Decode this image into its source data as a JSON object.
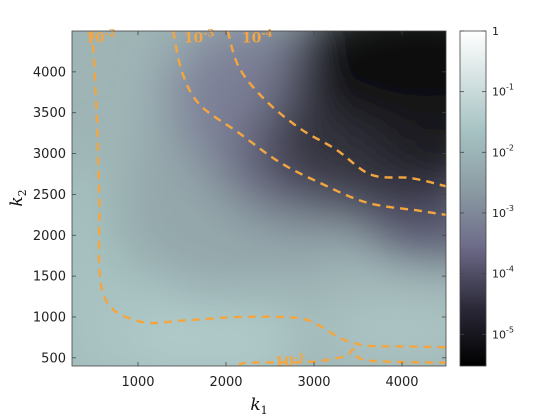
{
  "chart_data": {
    "type": "heatmap",
    "title": "",
    "xlabel": {
      "base": "k",
      "sub": "1"
    },
    "ylabel": {
      "base": "k",
      "sub": "2"
    },
    "xlim": [
      250,
      4500
    ],
    "ylim": [
      400,
      4500
    ],
    "xticks": [
      1000,
      2000,
      3000,
      4000
    ],
    "yticks": [
      500,
      1000,
      1500,
      2000,
      2500,
      3000,
      3500,
      4000
    ],
    "colorbar": {
      "scale": "log",
      "range": [
        3e-06,
        1
      ],
      "ticks": [
        {
          "value": 1,
          "label": "1"
        },
        {
          "value": 0.1,
          "label": "10",
          "exp": "-1"
        },
        {
          "value": 0.01,
          "label": "10",
          "exp": "-2"
        },
        {
          "value": 0.001,
          "label": "10",
          "exp": "-3"
        },
        {
          "value": 0.0001,
          "label": "10",
          "exp": "-4"
        },
        {
          "value": 1e-05,
          "label": "10",
          "exp": "-5"
        }
      ],
      "colormap": [
        "#000000",
        "#2a2837",
        "#6e6c8a",
        "#8a9aa2",
        "#a6c2c2",
        "#ffffff"
      ]
    },
    "contours": [
      {
        "level": 0.1,
        "label": "10",
        "exp": "-1",
        "points": [
          [
            2150,
            400
          ],
          [
            2250,
            440
          ],
          [
            2950,
            450
          ],
          [
            3350,
            520
          ],
          [
            3450,
            600
          ],
          [
            3600,
            470
          ],
          [
            4500,
            440
          ]
        ],
        "label_at": [
          2550,
          470
        ]
      },
      {
        "level": 0.01,
        "label": "10",
        "exp": "-2",
        "points": [
          [
            480,
            4500
          ],
          [
            530,
            3500
          ],
          [
            560,
            2500
          ],
          [
            600,
            1300
          ],
          [
            1000,
            950
          ],
          [
            1550,
            960
          ],
          [
            2150,
            1000
          ],
          [
            2800,
            990
          ],
          [
            3050,
            900
          ],
          [
            3320,
            730
          ],
          [
            3600,
            650
          ],
          [
            4000,
            640
          ],
          [
            4500,
            630
          ]
        ],
        "label_at": [
          400,
          4430
        ]
      },
      {
        "level": 0.001,
        "label": "10",
        "exp": "-3",
        "points": [
          [
            1400,
            4500
          ],
          [
            1500,
            4000
          ],
          [
            1700,
            3600
          ],
          [
            2150,
            3250
          ],
          [
            2600,
            2900
          ],
          [
            3050,
            2650
          ],
          [
            3600,
            2400
          ],
          [
            4200,
            2300
          ],
          [
            4500,
            2250
          ]
        ],
        "label_at": [
          1520,
          4430
        ]
      },
      {
        "level": 0.0001,
        "label": "10",
        "exp": "-4",
        "points": [
          [
            2020,
            4500
          ],
          [
            2150,
            4050
          ],
          [
            2450,
            3650
          ],
          [
            2850,
            3300
          ],
          [
            3250,
            3050
          ],
          [
            3650,
            2740
          ],
          [
            4100,
            2700
          ],
          [
            4500,
            2600
          ]
        ],
        "label_at": [
          2180,
          4430
        ]
      }
    ]
  }
}
